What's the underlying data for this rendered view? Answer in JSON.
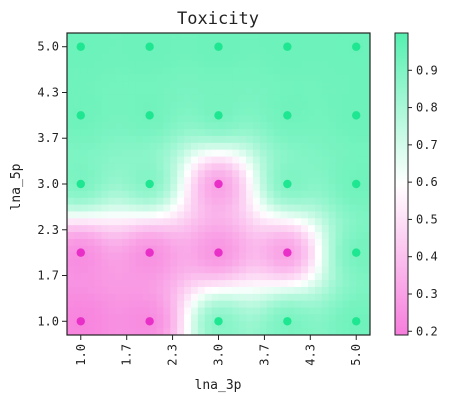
{
  "chart_data": {
    "type": "scatter",
    "title": "Toxicity",
    "xlabel": "lna_3p",
    "ylabel": "lna_5p",
    "xlim": [
      0.8,
      5.2
    ],
    "ylim": [
      0.8,
      5.2
    ],
    "x_ticks": [
      "1.0",
      "1.7",
      "2.3",
      "3.0",
      "3.7",
      "4.3",
      "5.0"
    ],
    "x_tick_values": [
      1.0,
      1.667,
      2.333,
      3.0,
      3.667,
      4.333,
      5.0
    ],
    "y_ticks": [
      "1.0",
      "1.7",
      "2.3",
      "3.0",
      "3.7",
      "4.3",
      "5.0"
    ],
    "y_tick_values": [
      1.0,
      1.667,
      2.333,
      3.0,
      3.667,
      4.333,
      5.0
    ],
    "grid": false,
    "background": "smooth interpolated toxicity field (low values pink bottom-left, high values green top-right)",
    "colorbar": {
      "min": 0.19,
      "max": 1.0,
      "ticks": [
        "0.2",
        "0.3",
        "0.4",
        "0.5",
        "0.6",
        "0.7",
        "0.8",
        "0.9"
      ],
      "tick_values": [
        0.2,
        0.3,
        0.4,
        0.5,
        0.6,
        0.7,
        0.8,
        0.9
      ],
      "colormap": [
        "#f77ddc",
        "#ffffff",
        "#55f0b0"
      ]
    },
    "points": [
      {
        "x": 1,
        "y": 1,
        "value": 0.2
      },
      {
        "x": 2,
        "y": 1,
        "value": 0.2
      },
      {
        "x": 3,
        "y": 1,
        "value": 0.95
      },
      {
        "x": 4,
        "y": 1,
        "value": 0.95
      },
      {
        "x": 5,
        "y": 1,
        "value": 0.95
      },
      {
        "x": 1,
        "y": 2,
        "value": 0.2
      },
      {
        "x": 2,
        "y": 2,
        "value": 0.2
      },
      {
        "x": 3,
        "y": 2,
        "value": 0.2
      },
      {
        "x": 4,
        "y": 2,
        "value": 0.2
      },
      {
        "x": 5,
        "y": 2,
        "value": 0.95
      },
      {
        "x": 1,
        "y": 3,
        "value": 0.95
      },
      {
        "x": 2,
        "y": 3,
        "value": 0.95
      },
      {
        "x": 3,
        "y": 3,
        "value": 0.2
      },
      {
        "x": 4,
        "y": 3,
        "value": 0.95
      },
      {
        "x": 5,
        "y": 3,
        "value": 0.95
      },
      {
        "x": 1,
        "y": 4,
        "value": 0.95
      },
      {
        "x": 2,
        "y": 4,
        "value": 0.95
      },
      {
        "x": 3,
        "y": 4,
        "value": 0.95
      },
      {
        "x": 4,
        "y": 4,
        "value": 0.95
      },
      {
        "x": 5,
        "y": 4,
        "value": 0.95
      },
      {
        "x": 1,
        "y": 5,
        "value": 0.95
      },
      {
        "x": 2,
        "y": 5,
        "value": 0.95
      },
      {
        "x": 3,
        "y": 5,
        "value": 0.95
      },
      {
        "x": 4,
        "y": 5,
        "value": 0.95
      },
      {
        "x": 5,
        "y": 5,
        "value": 0.95
      }
    ]
  }
}
